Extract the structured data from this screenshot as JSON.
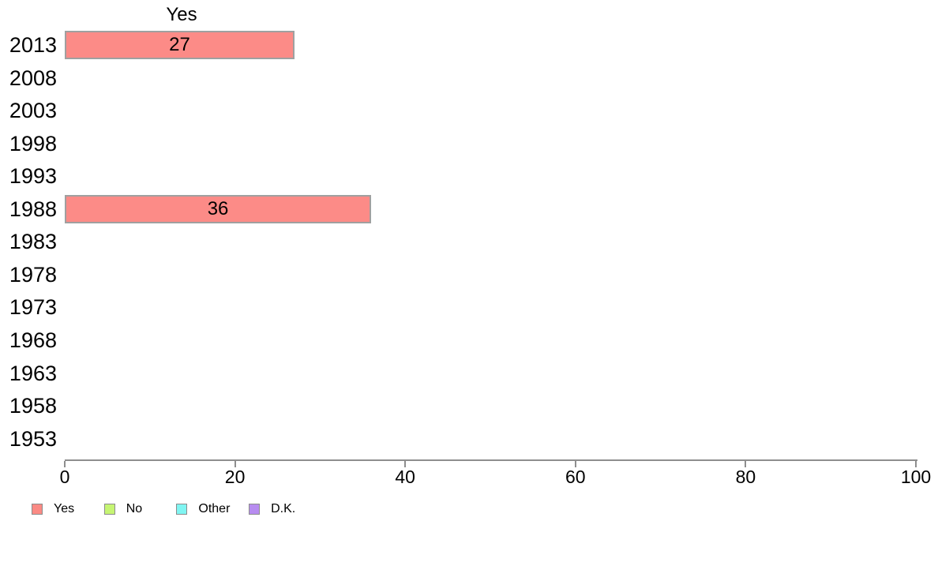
{
  "chart_data": {
    "type": "bar",
    "orientation": "horizontal",
    "title": "Yes",
    "categories": [
      "2013",
      "2008",
      "2003",
      "1998",
      "1993",
      "1988",
      "1983",
      "1978",
      "1973",
      "1968",
      "1963",
      "1958",
      "1953"
    ],
    "values": [
      27,
      null,
      null,
      null,
      null,
      36,
      null,
      null,
      null,
      null,
      null,
      null,
      null
    ],
    "bar_value_labels": [
      "27",
      "",
      "",
      "",
      "",
      "36",
      "",
      "",
      "",
      "",
      "",
      "",
      ""
    ],
    "xlabel": "",
    "ylabel": "",
    "xlim": [
      0,
      100
    ],
    "x_ticks": [
      0,
      20,
      40,
      60,
      80,
      100
    ],
    "grid": false,
    "legend_position": "bottom-left",
    "colors": {
      "bar_fill": "#FC8B87",
      "bar_border": "#A0A0A0",
      "axis": "#8E8E8E",
      "text": "#000000",
      "background": "#FFFFFF"
    },
    "legend": [
      {
        "label": "Yes",
        "color": "#FB8A84"
      },
      {
        "label": "No",
        "color": "#C6F573"
      },
      {
        "label": "Other",
        "color": "#80F5F2"
      },
      {
        "label": "D.K.",
        "color": "#B78CF0"
      }
    ]
  }
}
